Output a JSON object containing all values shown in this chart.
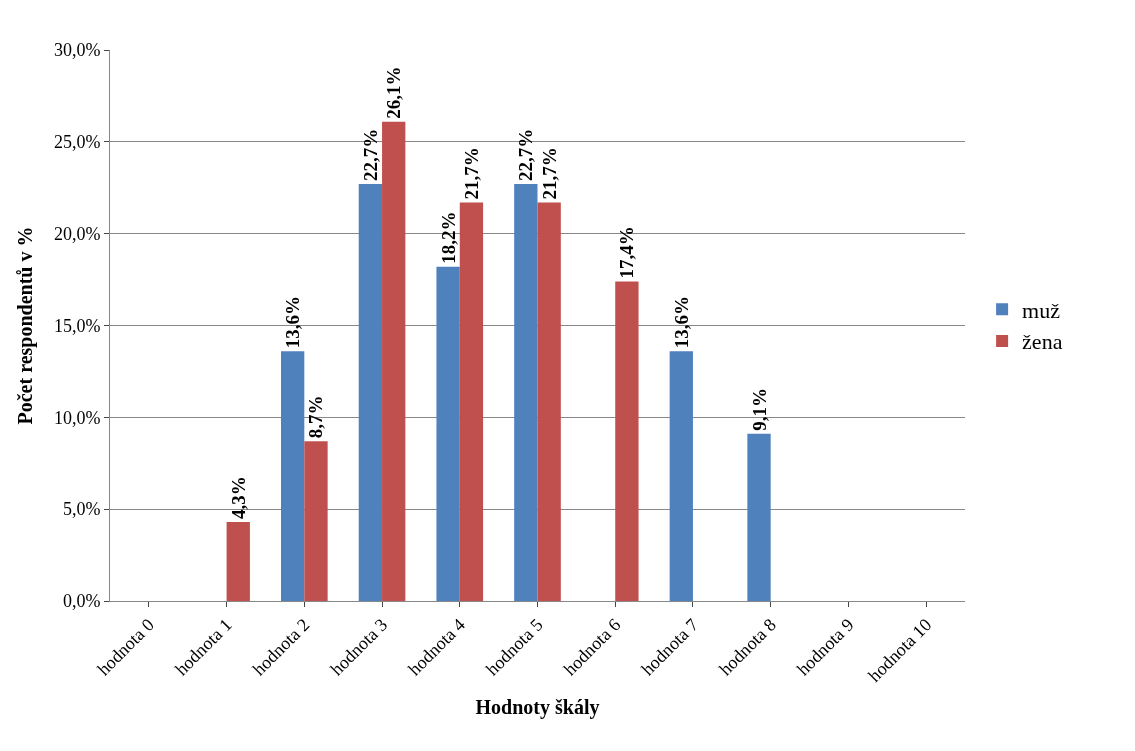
{
  "chart_data": {
    "type": "bar",
    "xlabel": "Hodnoty škály",
    "ylabel": "Počet respondentů v %",
    "categories": [
      "hodnota 0",
      "hodnota 1",
      "hodnota 2",
      "hodnota 3",
      "hodnota 4",
      "hodnota 5",
      "hodnota 6",
      "hodnota 7",
      "hodnota 8",
      "hodnota 9",
      "hodnota 10"
    ],
    "series": [
      {
        "name": "muž",
        "color": "#4f81bd",
        "values": [
          null,
          null,
          13.6,
          22.7,
          18.2,
          22.7,
          null,
          13.6,
          9.1,
          null,
          null
        ],
        "value_labels": [
          null,
          null,
          "13,6%",
          "22,7%",
          "18,2%",
          "22,7%",
          null,
          "13,6%",
          "9,1%",
          null,
          null
        ]
      },
      {
        "name": "žena",
        "color": "#c0504d",
        "values": [
          null,
          4.3,
          8.7,
          26.1,
          21.7,
          21.7,
          17.4,
          null,
          null,
          null,
          null
        ],
        "value_labels": [
          null,
          "4,3%",
          "8,7%",
          "26,1%",
          "21,7%",
          "21,7%",
          "17,4%",
          null,
          null,
          null,
          null
        ]
      }
    ],
    "ylim": [
      0,
      30
    ],
    "yticks": [
      {
        "value": 0,
        "label": "0,0%"
      },
      {
        "value": 5,
        "label": "5,0%"
      },
      {
        "value": 10,
        "label": "10,0%"
      },
      {
        "value": 15,
        "label": "15,0%"
      },
      {
        "value": 20,
        "label": "20,0%"
      },
      {
        "value": 25,
        "label": "25,0%"
      },
      {
        "value": 30,
        "label": "30,0%"
      }
    ],
    "grid": "y",
    "legend": "right"
  }
}
